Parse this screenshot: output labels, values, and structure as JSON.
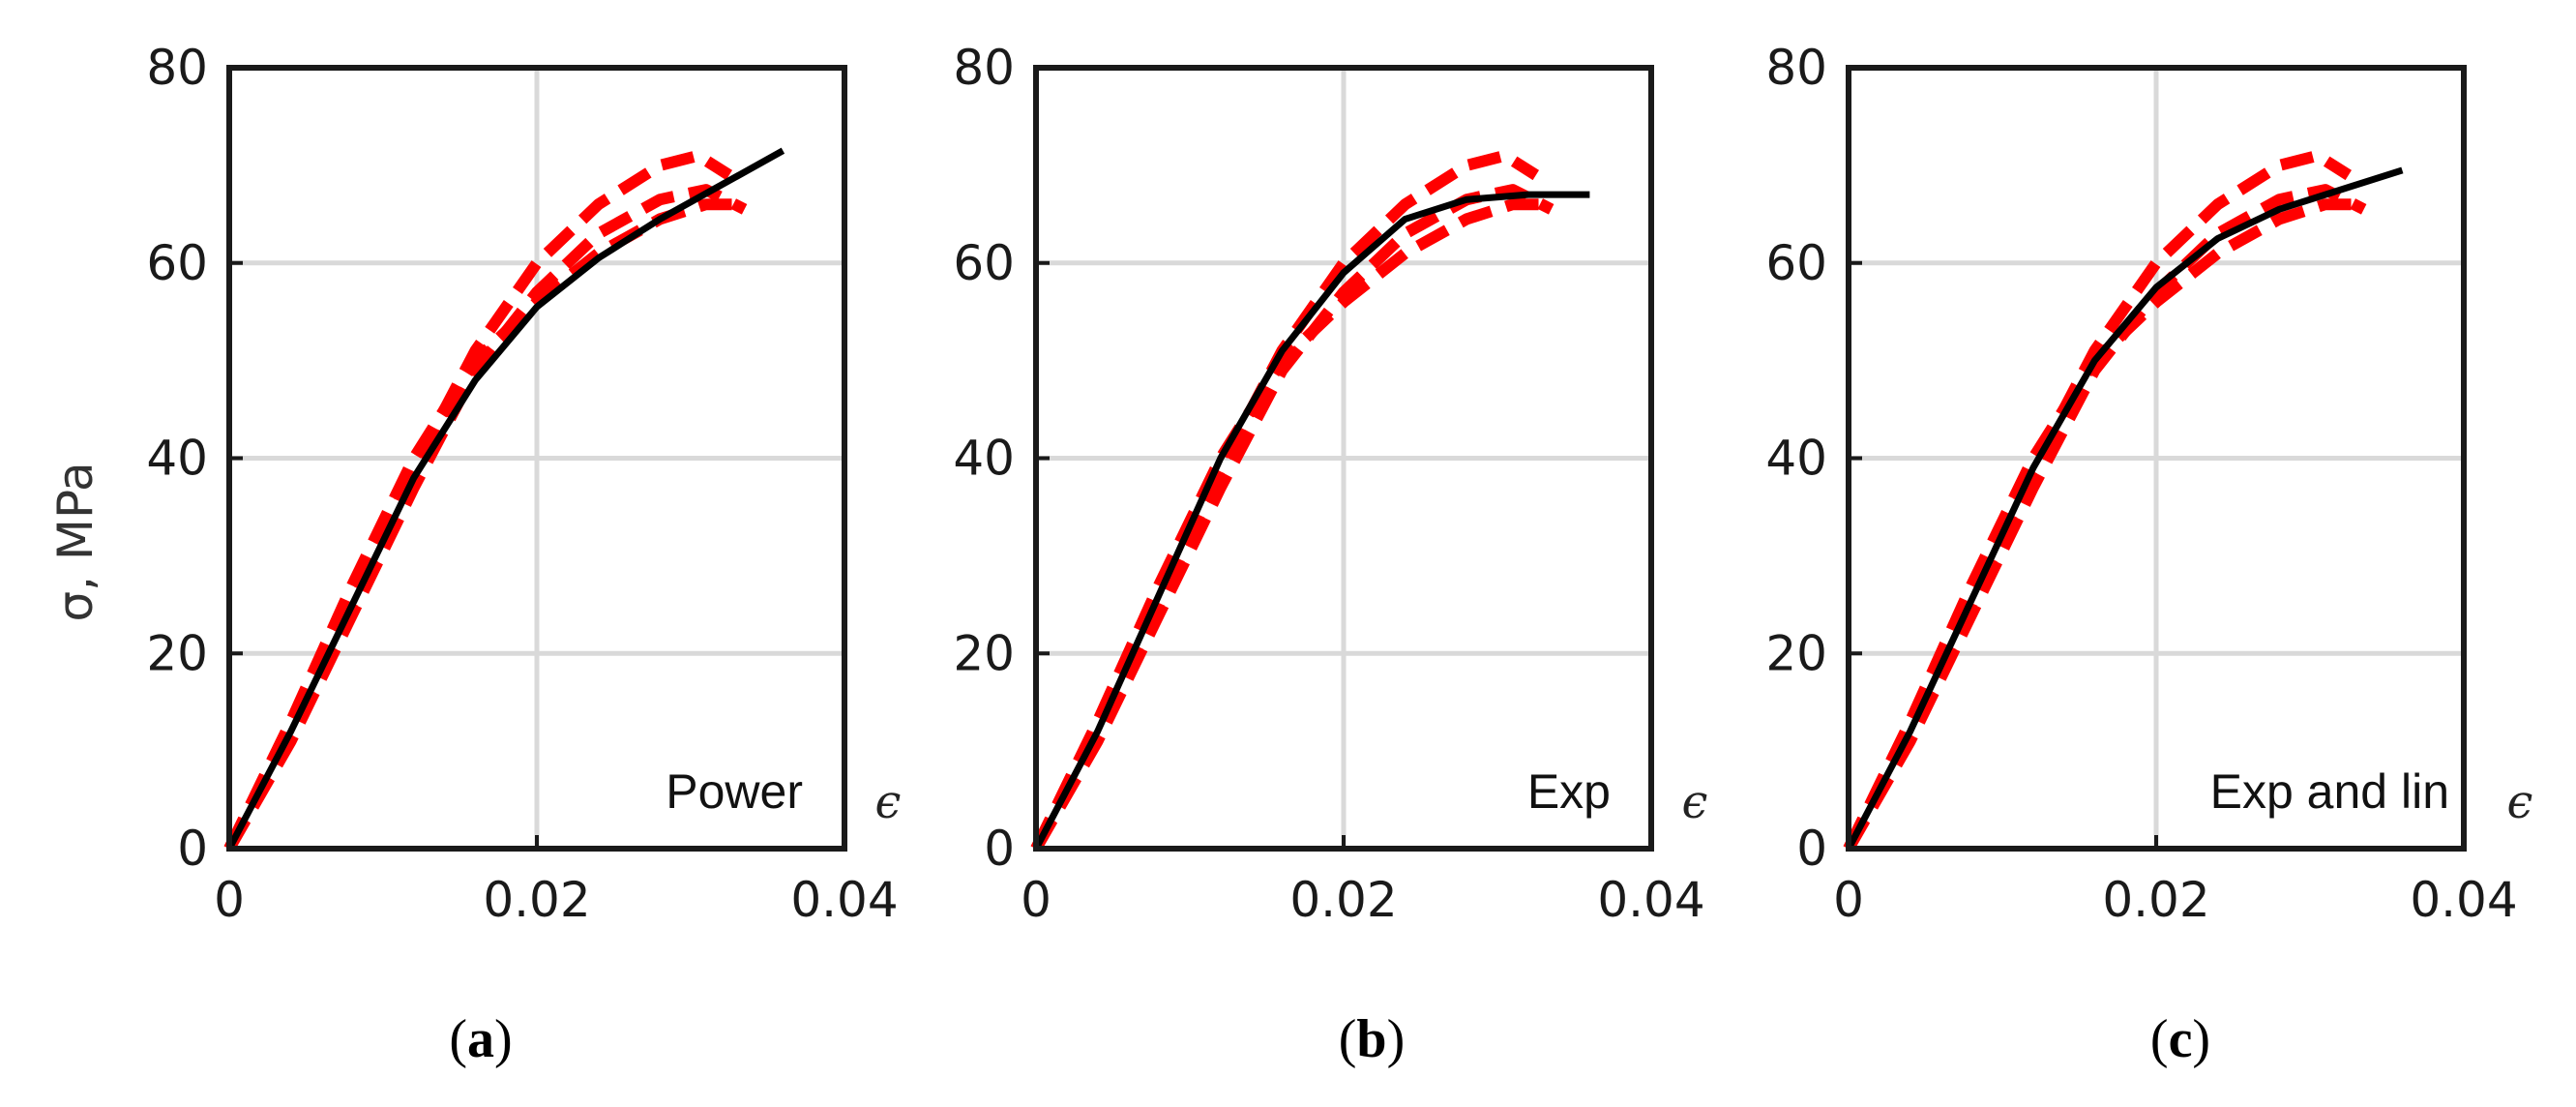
{
  "chart_data": [
    {
      "type": "line",
      "panel_letter": "a",
      "annotation": "Power",
      "xlabel": "ϵ",
      "ylabel": "σ, MPa",
      "xlim": [
        0,
        0.04
      ],
      "ylim": [
        0,
        80
      ],
      "xticks": [
        0,
        0.02,
        0.04
      ],
      "xtick_labels": [
        "0",
        "0.02",
        "0.04"
      ],
      "yticks": [
        0,
        20,
        40,
        60,
        80
      ],
      "ytick_labels": [
        "0",
        "20",
        "40",
        "60",
        "80"
      ],
      "grid": true,
      "series": [
        {
          "style": "dashed",
          "color": "#ff0000",
          "x": [
            0,
            0.004,
            0.008,
            0.012,
            0.016,
            0.02,
            0.024,
            0.028,
            0.0305,
            0.0325
          ],
          "y": [
            0,
            12,
            25,
            39,
            51,
            60,
            66,
            70,
            71,
            69
          ]
        },
        {
          "style": "dashed",
          "color": "#ff0000",
          "x": [
            0,
            0.004,
            0.008,
            0.012,
            0.016,
            0.02,
            0.024,
            0.028,
            0.031,
            0.0335
          ],
          "y": [
            0,
            11,
            24,
            37,
            49,
            57,
            63,
            66.5,
            67.5,
            65.5
          ]
        },
        {
          "style": "dashed",
          "color": "#ff0000",
          "x": [
            0,
            0.004,
            0.008,
            0.012,
            0.016,
            0.02,
            0.024,
            0.028,
            0.031,
            0.0335
          ],
          "y": [
            0,
            13,
            27,
            40,
            50,
            56,
            61,
            64.5,
            66,
            66
          ]
        },
        {
          "style": "solid",
          "color": "#000000",
          "x": [
            0,
            0.004,
            0.008,
            0.012,
            0.016,
            0.02,
            0.024,
            0.028,
            0.032,
            0.036
          ],
          "y": [
            0,
            12,
            25,
            38,
            48,
            55.5,
            60.5,
            64.5,
            68,
            71.5
          ]
        }
      ]
    },
    {
      "type": "line",
      "panel_letter": "b",
      "annotation": "Exp",
      "xlabel": "ϵ",
      "ylabel": "",
      "xlim": [
        0,
        0.04
      ],
      "ylim": [
        0,
        80
      ],
      "xticks": [
        0,
        0.02,
        0.04
      ],
      "xtick_labels": [
        "0",
        "0.02",
        "0.04"
      ],
      "yticks": [
        0,
        20,
        40,
        60,
        80
      ],
      "ytick_labels": [
        "0",
        "20",
        "40",
        "60",
        "80"
      ],
      "grid": true,
      "series": [
        {
          "style": "dashed",
          "color": "#ff0000",
          "x": [
            0,
            0.004,
            0.008,
            0.012,
            0.016,
            0.02,
            0.024,
            0.028,
            0.0305,
            0.0325
          ],
          "y": [
            0,
            12,
            25,
            39,
            51,
            60,
            66,
            70,
            71,
            69
          ]
        },
        {
          "style": "dashed",
          "color": "#ff0000",
          "x": [
            0,
            0.004,
            0.008,
            0.012,
            0.016,
            0.02,
            0.024,
            0.028,
            0.031,
            0.0335
          ],
          "y": [
            0,
            11,
            24,
            37,
            49,
            57,
            63,
            66.5,
            67.5,
            65.5
          ]
        },
        {
          "style": "dashed",
          "color": "#ff0000",
          "x": [
            0,
            0.004,
            0.008,
            0.012,
            0.016,
            0.02,
            0.024,
            0.028,
            0.031,
            0.0335
          ],
          "y": [
            0,
            13,
            27,
            40,
            50,
            56,
            61,
            64.5,
            66,
            66
          ]
        },
        {
          "style": "solid",
          "color": "#000000",
          "x": [
            0,
            0.004,
            0.008,
            0.012,
            0.016,
            0.02,
            0.024,
            0.028,
            0.032,
            0.036
          ],
          "y": [
            0,
            12,
            26,
            40,
            51,
            59,
            64.5,
            66.5,
            67,
            67
          ]
        }
      ]
    },
    {
      "type": "line",
      "panel_letter": "c",
      "annotation": "Exp and lin",
      "xlabel": "ϵ",
      "ylabel": "",
      "xlim": [
        0,
        0.04
      ],
      "ylim": [
        0,
        80
      ],
      "xticks": [
        0,
        0.02,
        0.04
      ],
      "xtick_labels": [
        "0",
        "0.02",
        "0.04"
      ],
      "yticks": [
        0,
        20,
        40,
        60,
        80
      ],
      "ytick_labels": [
        "0",
        "20",
        "40",
        "60",
        "80"
      ],
      "grid": true,
      "series": [
        {
          "style": "dashed",
          "color": "#ff0000",
          "x": [
            0,
            0.004,
            0.008,
            0.012,
            0.016,
            0.02,
            0.024,
            0.028,
            0.0305,
            0.0325
          ],
          "y": [
            0,
            12,
            25,
            39,
            51,
            60,
            66,
            70,
            71,
            69
          ]
        },
        {
          "style": "dashed",
          "color": "#ff0000",
          "x": [
            0,
            0.004,
            0.008,
            0.012,
            0.016,
            0.02,
            0.024,
            0.028,
            0.031,
            0.0335
          ],
          "y": [
            0,
            11,
            24,
            37,
            49,
            57,
            63,
            66.5,
            67.5,
            65.5
          ]
        },
        {
          "style": "dashed",
          "color": "#ff0000",
          "x": [
            0,
            0.004,
            0.008,
            0.012,
            0.016,
            0.02,
            0.024,
            0.028,
            0.031,
            0.0335
          ],
          "y": [
            0,
            13,
            27,
            40,
            50,
            56,
            61,
            64.5,
            66,
            66
          ]
        },
        {
          "style": "solid",
          "color": "#000000",
          "x": [
            0,
            0.004,
            0.008,
            0.012,
            0.016,
            0.02,
            0.024,
            0.028,
            0.032,
            0.036
          ],
          "y": [
            0,
            12,
            25.5,
            39,
            50,
            57.5,
            62.5,
            65.5,
            67.5,
            69.5
          ]
        }
      ]
    }
  ]
}
